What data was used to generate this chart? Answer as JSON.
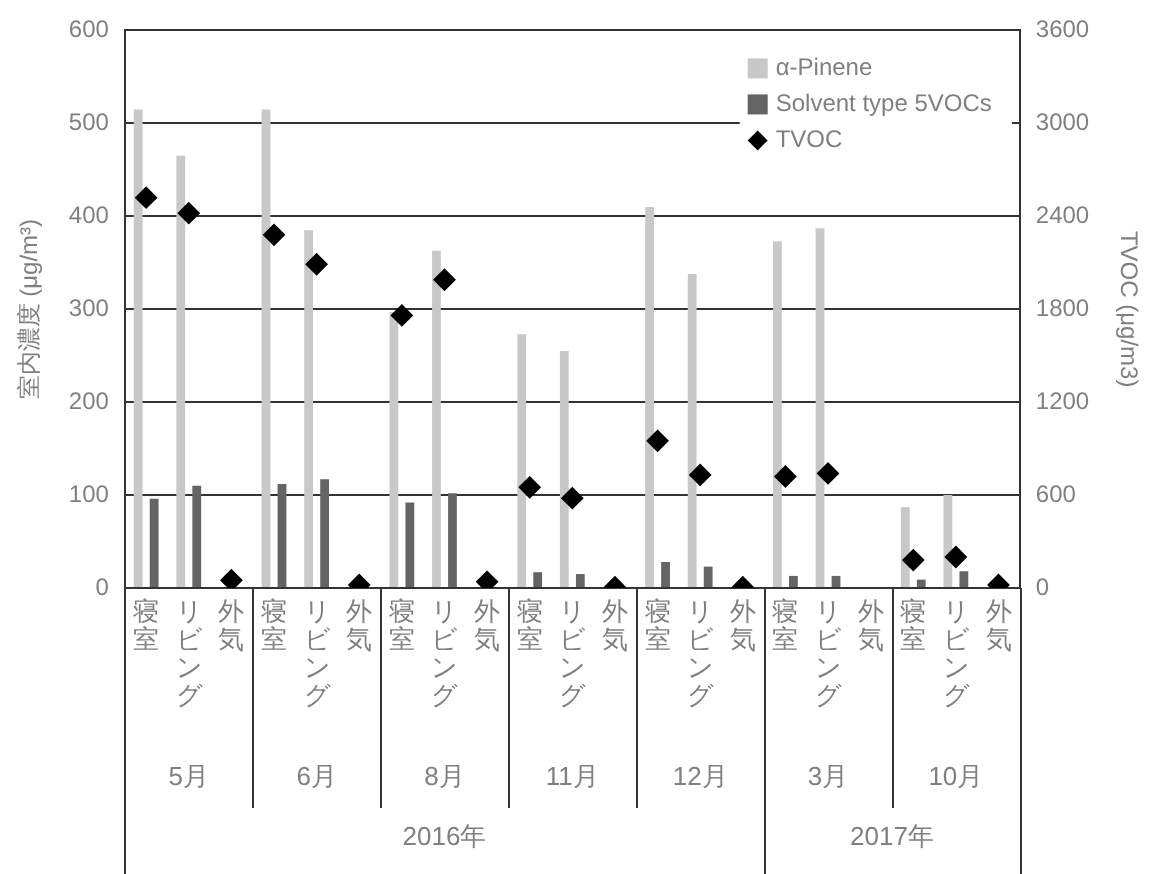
{
  "chart_data": {
    "type": "bar",
    "categories": [
      "寝室",
      "リビング",
      "外気",
      "寝室",
      "リビング",
      "外気",
      "寝室",
      "リビング",
      "外気",
      "寝室",
      "リビング",
      "外気",
      "寝室",
      "リビング",
      "外気",
      "寝室",
      "リビング",
      "外気",
      "寝室",
      "リビング",
      "外気"
    ],
    "series": [
      {
        "name": "α-Pinene",
        "color": "#c8c8c8",
        "values": [
          515,
          465,
          null,
          515,
          385,
          null,
          297,
          363,
          null,
          273,
          255,
          null,
          410,
          338,
          null,
          373,
          387,
          null,
          87,
          100,
          null
        ]
      },
      {
        "name": "Solvent type 5VOCs",
        "color": "#646464",
        "values": [
          96,
          110,
          null,
          112,
          117,
          null,
          92,
          102,
          null,
          17,
          15,
          null,
          28,
          23,
          null,
          13,
          13,
          null,
          9,
          18,
          null
        ]
      },
      {
        "name": "TVOC",
        "type": "scatter",
        "axis": "y2",
        "color": "#000000",
        "values": [
          2520,
          2420,
          50,
          2280,
          2090,
          20,
          1760,
          1990,
          40,
          650,
          580,
          5,
          950,
          730,
          5,
          720,
          740,
          null,
          180,
          200,
          20
        ]
      }
    ],
    "ylabel": "室内濃度 (μg/m³)",
    "y2label": "TVOC (μg/m3)",
    "ylim": [
      0,
      600
    ],
    "yticks": [
      0,
      100,
      200,
      300,
      400,
      500,
      600
    ],
    "y2lim": [
      0,
      3600
    ],
    "y2ticks": [
      0,
      600,
      1200,
      1800,
      2400,
      3000,
      3600
    ],
    "annotations": [
      "5月",
      "6月",
      "8月",
      "11月",
      "12月",
      "3月",
      "10月",
      "2016年",
      "2017年"
    ],
    "grid": "y",
    "legend": "top right",
    "marker": "diamond"
  }
}
